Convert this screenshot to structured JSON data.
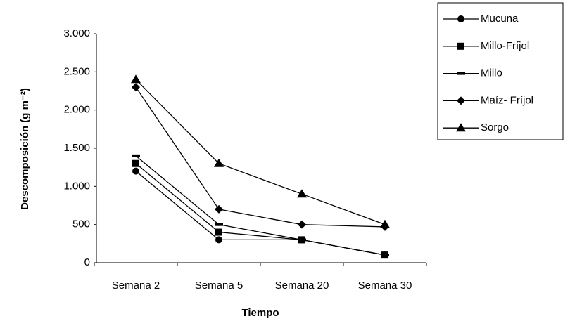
{
  "chart_data": {
    "type": "line",
    "x_label": "Tiempo",
    "y_label": "Descomposición (g m⁻²)",
    "categories": [
      "Semana 2",
      "Semana 5",
      "Semana 20",
      "Semana 30"
    ],
    "ylim": [
      0,
      3000
    ],
    "yticks": [
      0,
      500,
      {
        "value": 1000,
        "label": "1.000"
      },
      {
        "value": 1500,
        "label": "1.500"
      },
      {
        "value": 2000,
        "label": "2.000"
      },
      {
        "value": 2500,
        "label": "2.500"
      },
      {
        "value": 3000,
        "label": "3.000"
      }
    ],
    "grid": false,
    "legend": "right",
    "series": [
      {
        "name": "Mucuna",
        "color": "#000000",
        "marker": "circle",
        "values": [
          1200,
          300,
          300,
          100
        ]
      },
      {
        "name": "Millo-Fríjol",
        "color": "#000000",
        "marker": "square",
        "values": [
          1300,
          400,
          300,
          100
        ]
      },
      {
        "name": "Millo",
        "color": "#000000",
        "marker": "dash",
        "values": [
          1400,
          500,
          300,
          100
        ]
      },
      {
        "name": "Maíz- Fríjol",
        "color": "#000000",
        "marker": "diamond",
        "values": [
          2300,
          700,
          500,
          470
        ]
      },
      {
        "name": "Sorgo",
        "color": "#000000",
        "marker": "triangle",
        "values": [
          2400,
          1300,
          900,
          500
        ]
      }
    ]
  }
}
